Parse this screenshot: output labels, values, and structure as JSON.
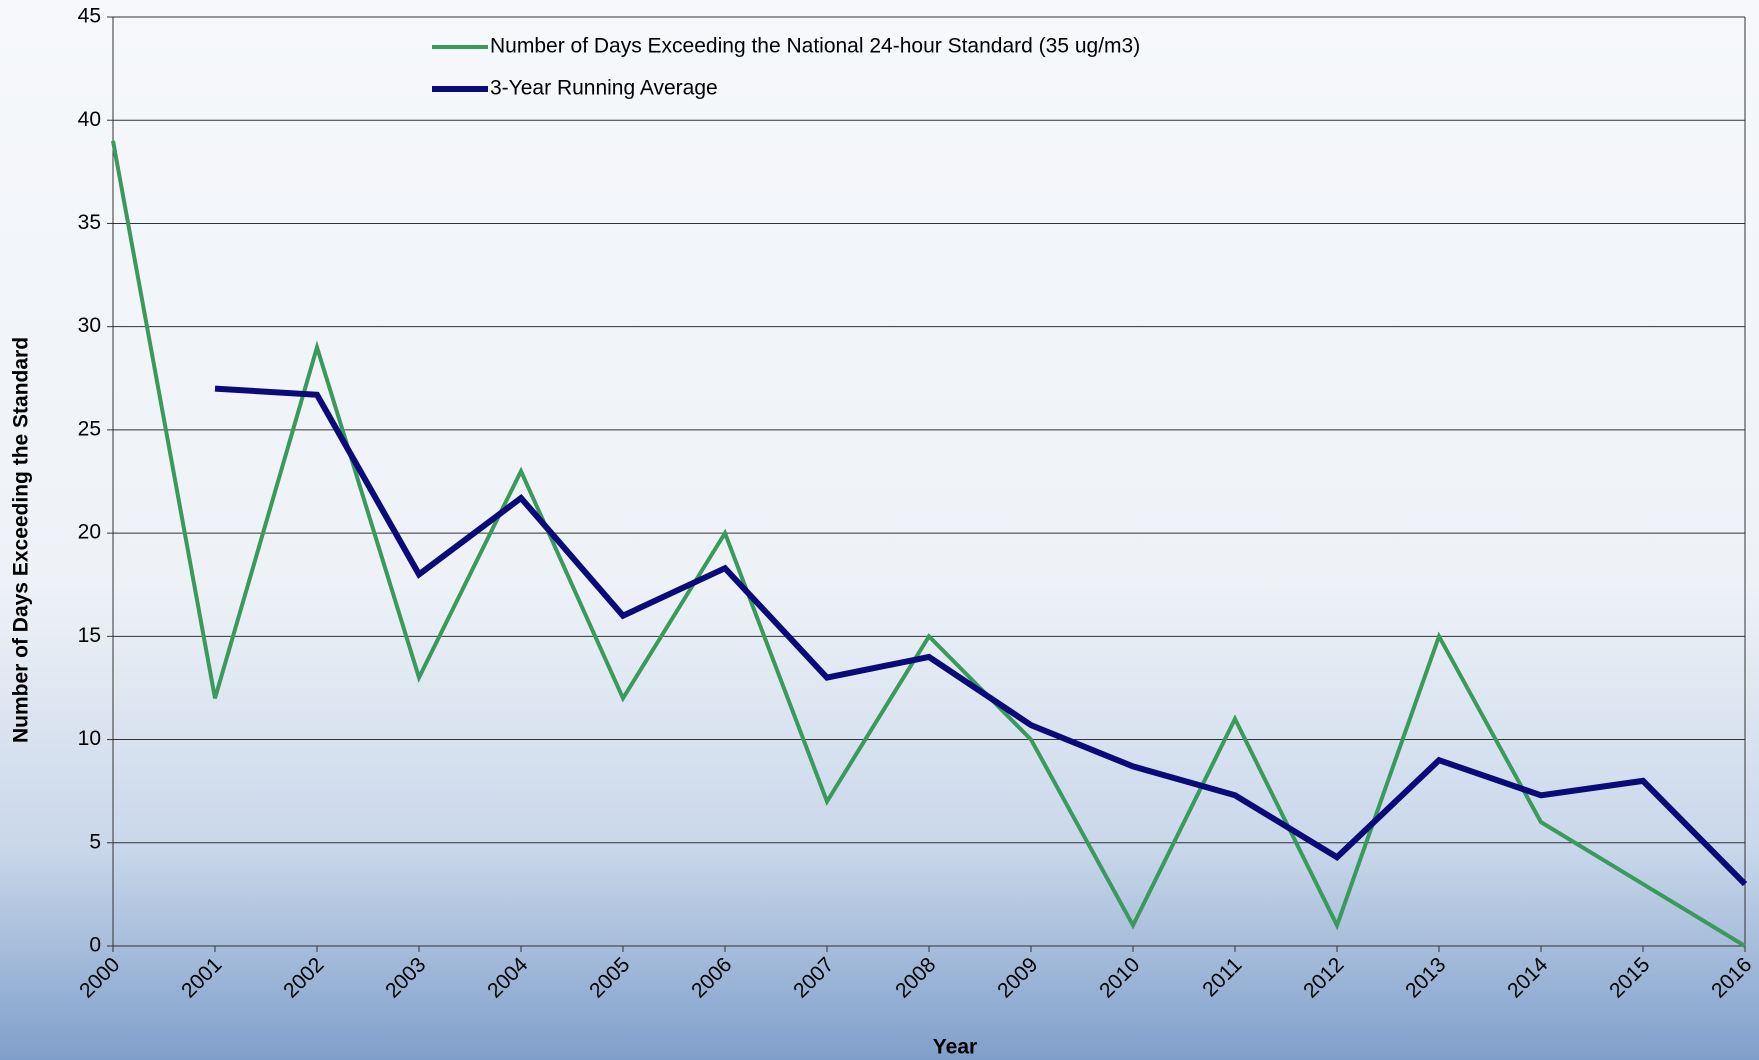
{
  "chart_data": {
    "type": "line",
    "y_label": "Number of Days Exceeding the Standard",
    "x_label": "Year",
    "categories": [
      "2000",
      "2001",
      "2002",
      "2003",
      "2004",
      "2005",
      "2006",
      "2007",
      "2008",
      "2009",
      "2010",
      "2011",
      "2012",
      "2013",
      "2014",
      "2015",
      "2016"
    ],
    "series": [
      {
        "name": "Number of Days Exceeding the National 24-hour Standard (35 ug/m3)",
        "color": "#3a9a5c",
        "width": 4,
        "values": [
          39,
          12,
          29,
          13,
          23,
          12,
          20,
          7,
          15,
          10,
          1,
          11,
          1,
          15,
          6,
          3,
          0
        ]
      },
      {
        "name": "3-Year Running Average",
        "color": "#0a0a78",
        "width": 6,
        "values": [
          null,
          27,
          26.7,
          18,
          21.7,
          16,
          18.3,
          13,
          14,
          10.7,
          8.7,
          7.3,
          4.3,
          9,
          7.3,
          8,
          3
        ]
      }
    ],
    "ylim": [
      0,
      45
    ],
    "yticks": [
      0,
      5,
      10,
      15,
      20,
      25,
      30,
      35,
      40,
      45
    ],
    "grid": true
  }
}
